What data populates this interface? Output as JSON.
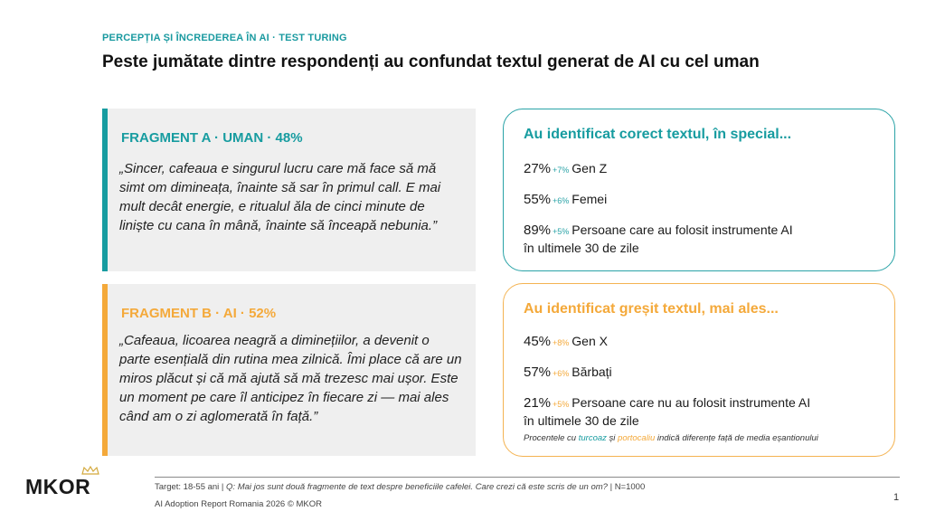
{
  "header": {
    "eyebrow": "PERCEPȚIA ȘI ÎNCREDEREA ÎN AI · TEST TURING",
    "headline": "Peste jumătate dintre respondenți au confundat textul generat de AI cu cel uman"
  },
  "fragments": [
    {
      "title": "FRAGMENT A · UMAN · 48%",
      "quote": "„Sincer, cafeaua e singurul lucru care mă face să mă simt om dimineața, înainte să sar în primul call. E mai mult decât energie, e ritualul ăla de cinci minute de liniște cu cana în mână, înainte să înceapă nebunia.”",
      "accent": "#179ca0"
    },
    {
      "title": "FRAGMENT B · AI · 52%",
      "quote": "„Cafeaua, licoarea neagră a diminețiilor, a devenit o parte esențială din rutina mea zilnică. Îmi place că are un miros plăcut și că mă ajută să mă trezesc mai ușor. Este un moment pe care îl anticipez în fiecare zi — mai ales când am o zi aglomerată în față.”",
      "accent": "#f4a93a"
    }
  ],
  "cards": {
    "correct": {
      "title": "Au identificat corect textul, în special...",
      "stats": [
        {
          "pct": "27%",
          "delta": "+7%",
          "label": "Gen Z",
          "label2": ""
        },
        {
          "pct": "55%",
          "delta": "+6%",
          "label": "Femei",
          "label2": ""
        },
        {
          "pct": "89%",
          "delta": "+5%",
          "label": "Persoane care au folosit instrumente AI",
          "label2": "în ultimele 30 de zile"
        }
      ]
    },
    "wrong": {
      "title": "Au identificat greșit textul, mai ales...",
      "stats": [
        {
          "pct": "45%",
          "delta": "+8%",
          "label": "Gen X",
          "label2": ""
        },
        {
          "pct": "57%",
          "delta": "+6%",
          "label": "Bărbați",
          "label2": ""
        },
        {
          "pct": "21%",
          "delta": "+5%",
          "label": "Persoane care nu au folosit instrumente AI",
          "label2": "în ultimele 30 de zile"
        }
      ],
      "note": {
        "pre": "Procentele cu ",
        "teal": "turcoaz",
        "mid": " și ",
        "orange": "portocaliu",
        "post": " indică diferențe față de media eșantionului"
      }
    }
  },
  "colors": {
    "teal": "#179ca0",
    "orange": "#f4a93a"
  },
  "footer": {
    "logo": "MKOR",
    "logo_icon": "crown-icon",
    "footnote_pre": "Target: 18-55 ani | ",
    "footnote_q": "Q: Mai jos sunt două fragmente de text despre beneficiile cafelei. Care crezi că este scris de un om?",
    "footnote_post": " | N=1000",
    "report": "AI Adoption Report Romania 2026 © MKOR",
    "page": "1"
  }
}
